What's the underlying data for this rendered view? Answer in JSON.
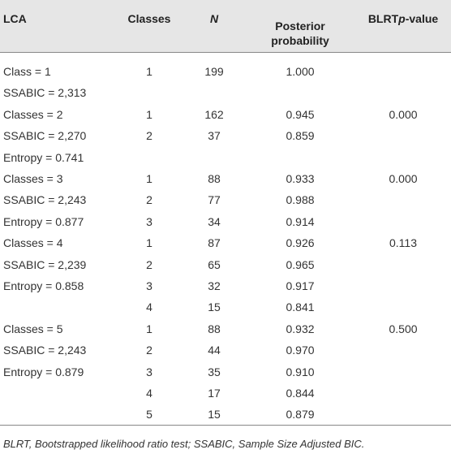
{
  "table": {
    "header": [
      "LCA",
      "Classes",
      "N",
      "Posterior probability",
      [
        "BLRT",
        "p",
        "-value"
      ]
    ],
    "rows": [
      [
        "Class = 1",
        "1",
        "199",
        "1.000",
        null
      ],
      [
        "SSABIC = 2,313",
        null,
        null,
        null,
        null
      ],
      [
        "Classes = 2",
        "1",
        "162",
        "0.945",
        "0.000"
      ],
      [
        "SSABIC = 2,270",
        "2",
        "37",
        "0.859",
        null
      ],
      [
        "Entropy = 0.741",
        null,
        null,
        null,
        null
      ],
      [
        "Classes = 3",
        "1",
        "88",
        "0.933",
        "0.000"
      ],
      [
        "SSABIC = 2,243",
        "2",
        "77",
        "0.988",
        null
      ],
      [
        "Entropy = 0.877",
        "3",
        "34",
        "0.914",
        null
      ],
      [
        "Classes = 4",
        "1",
        "87",
        "0.926",
        "0.113"
      ],
      [
        "SSABIC = 2,239",
        "2",
        "65",
        "0.965",
        null
      ],
      [
        "Entropy = 0.858",
        "3",
        "32",
        "0.917",
        null
      ],
      [
        null,
        "4",
        "15",
        "0.841",
        null
      ],
      [
        "Classes = 5",
        "1",
        "88",
        "0.932",
        "0.500"
      ],
      [
        "SSABIC = 2,243",
        "2",
        "44",
        "0.970",
        null
      ],
      [
        "Entropy = 0.879",
        "3",
        "35",
        "0.910",
        null
      ],
      [
        null,
        "4",
        "17",
        "0.844",
        null
      ],
      [
        null,
        "5",
        "15",
        "0.879",
        null
      ]
    ]
  },
  "footnote": "BLRT, Bootstrapped likelihood ratio test; SSABIC, Sample Size Adjusted BIC."
}
